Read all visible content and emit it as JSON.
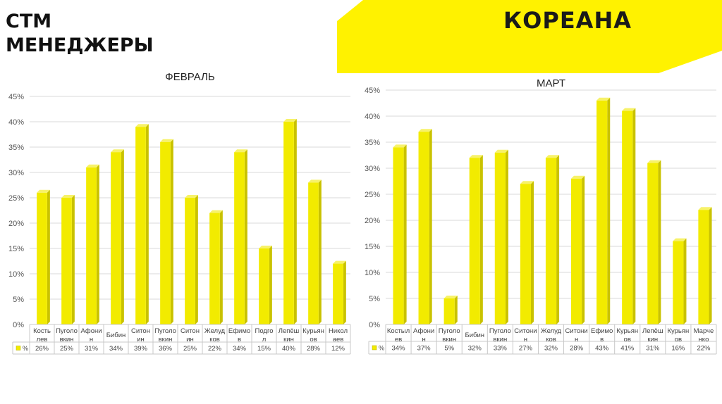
{
  "header": {
    "title_line1": "СТМ",
    "title_line2": "МЕНЕДЖЕРЫ",
    "logo": "КОРЕАНА",
    "accent": "#fff200"
  },
  "chart_data": [
    {
      "type": "bar",
      "title": "ФЕВРАЛЬ",
      "categories": [
        "Кость лев",
        "Пуголо вкин",
        "Афони н",
        "Бибин",
        "Ситон ин",
        "Пуголо вкин",
        "Ситон ин",
        "Желуд ков",
        "Ефимо в",
        "Подго л",
        "Лепёш кин",
        "Курьян ов",
        "Никол аев"
      ],
      "series": [
        {
          "name": "%",
          "values": [
            26,
            25,
            31,
            34,
            39,
            36,
            25,
            22,
            34,
            15,
            40,
            28,
            12
          ]
        }
      ],
      "table_values": [
        "26%",
        "25%",
        "31%",
        "34%",
        "39%",
        "36%",
        "25%",
        "22%",
        "34%",
        "15%",
        "40%",
        "28%",
        "12%"
      ],
      "yticks": [
        "0%",
        "5%",
        "10%",
        "15%",
        "20%",
        "25%",
        "30%",
        "35%",
        "40%",
        "45%"
      ],
      "ylim": [
        0,
        45
      ],
      "grid": true,
      "color": "#f2eb00"
    },
    {
      "type": "bar",
      "title": "МАРТ",
      "categories": [
        "Костыл ев",
        "Афони н",
        "Пуголо вкин",
        "Бибин",
        "Пуголо вкин",
        "Ситони н",
        "Желуд ков",
        "Ситони н",
        "Ефимо в",
        "Курьян ов",
        "Лепёш кин",
        "Курьян ов",
        "Марче нко"
      ],
      "series": [
        {
          "name": "%",
          "values": [
            34,
            37,
            5,
            32,
            33,
            27,
            32,
            28,
            43,
            41,
            31,
            16,
            22
          ]
        }
      ],
      "table_values": [
        "34%",
        "37%",
        "5%",
        "32%",
        "33%",
        "27%",
        "32%",
        "28%",
        "43%",
        "41%",
        "31%",
        "16%",
        "22%"
      ],
      "yticks": [
        "0%",
        "5%",
        "10%",
        "15%",
        "20%",
        "25%",
        "30%",
        "35%",
        "40%",
        "45%"
      ],
      "ylim": [
        0,
        45
      ],
      "grid": true,
      "color": "#f2eb00"
    }
  ]
}
